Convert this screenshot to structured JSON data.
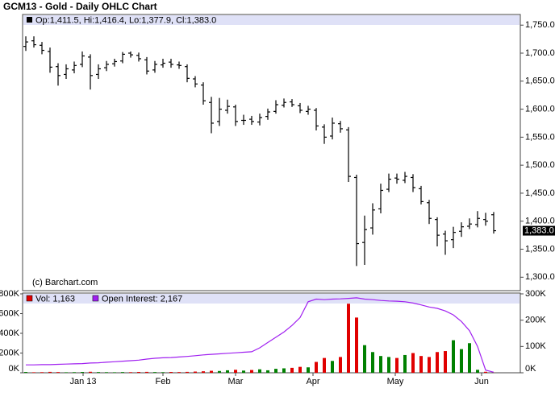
{
  "chart_data": [
    {
      "type": "ohlc",
      "title": "GCM13 - Gold - Daily OHLC Chart",
      "legend_text": "Op:1,411.5, Hi:1,416.4, Lo:1,377.9, Cl:1,383.0",
      "annotation": "(c) Barchart.com",
      "last_price_label": "1,383.0",
      "color": "#000000",
      "xlim": [
        -0.4,
        61.3
      ],
      "open": [
        1712,
        1722,
        1714,
        1703,
        1676,
        1662,
        1670,
        1680,
        1693,
        1662,
        1674,
        1681,
        1686,
        1700,
        1696,
        1688,
        1670,
        1679,
        1684,
        1679,
        1676,
        1654,
        1643,
        1612,
        1578,
        1598,
        1604,
        1580,
        1582,
        1577,
        1587,
        1596,
        1607,
        1613,
        1606,
        1596,
        1598,
        1568,
        1552,
        1574,
        1563,
        1478,
        1362,
        1388,
        1422,
        1457,
        1477,
        1473,
        1478,
        1458,
        1433,
        1403,
        1377,
        1367,
        1382,
        1391,
        1394,
        1403,
        1411.5
      ],
      "high": [
        1730,
        1730,
        1720,
        1710,
        1682,
        1680,
        1685,
        1703,
        1698,
        1680,
        1686,
        1690,
        1702,
        1703,
        1701,
        1693,
        1686,
        1690,
        1690,
        1685,
        1680,
        1659,
        1648,
        1622,
        1620,
        1617,
        1608,
        1590,
        1588,
        1592,
        1601,
        1616,
        1619,
        1618,
        1611,
        1606,
        1602,
        1573,
        1585,
        1579,
        1568,
        1483,
        1410,
        1432,
        1467,
        1485,
        1485,
        1488,
        1484,
        1463,
        1438,
        1407,
        1383,
        1390,
        1398,
        1405,
        1418,
        1415,
        1416.4
      ],
      "low": [
        1704,
        1710,
        1698,
        1665,
        1642,
        1654,
        1664,
        1675,
        1635,
        1654,
        1668,
        1676,
        1682,
        1692,
        1685,
        1662,
        1665,
        1674,
        1674,
        1672,
        1648,
        1639,
        1608,
        1557,
        1570,
        1592,
        1570,
        1572,
        1572,
        1571,
        1581,
        1592,
        1603,
        1604,
        1593,
        1590,
        1562,
        1538,
        1546,
        1558,
        1470,
        1320,
        1322,
        1376,
        1414,
        1452,
        1467,
        1468,
        1452,
        1430,
        1395,
        1355,
        1340,
        1352,
        1372,
        1386,
        1389,
        1392,
        1377.9
      ],
      "close": [
        1720,
        1715,
        1705,
        1675,
        1660,
        1672,
        1678,
        1695,
        1660,
        1672,
        1680,
        1685,
        1698,
        1697,
        1690,
        1668,
        1680,
        1682,
        1680,
        1678,
        1655,
        1645,
        1615,
        1575,
        1600,
        1605,
        1578,
        1580,
        1578,
        1585,
        1595,
        1608,
        1612,
        1608,
        1598,
        1600,
        1570,
        1550,
        1575,
        1565,
        1480,
        1360,
        1385,
        1420,
        1455,
        1475,
        1475,
        1480,
        1460,
        1435,
        1405,
        1375,
        1365,
        1380,
        1390,
        1395,
        1405,
        1400,
        1383
      ],
      "ylim": [
        1276,
        1769
      ],
      "yticks": [
        {
          "value": 1300,
          "label": "1,300.0"
        },
        {
          "value": 1350,
          "label": "1,350.0"
        },
        {
          "value": 1400,
          "label": "1,400.0"
        },
        {
          "value": 1450,
          "label": "1,450.0"
        },
        {
          "value": 1500,
          "label": "1,500.0"
        },
        {
          "value": 1550,
          "label": "1,550.0"
        },
        {
          "value": 1600,
          "label": "1,600.0"
        },
        {
          "value": 1650,
          "label": "1,650.0"
        },
        {
          "value": 1700,
          "label": "1,700.0"
        },
        {
          "value": 1750,
          "label": "1,750.0"
        }
      ],
      "grid": false
    },
    {
      "type": "bar",
      "xlim": [
        -0.4,
        61.3
      ],
      "xticks": [
        {
          "value": 7.1,
          "label": "Jan 13"
        },
        {
          "value": 17,
          "label": "Feb"
        },
        {
          "value": 26,
          "label": "Mar"
        },
        {
          "value": 35.6,
          "label": "Apr"
        },
        {
          "value": 45.8,
          "label": "May"
        },
        {
          "value": 56.5,
          "label": "Jun"
        }
      ],
      "ylim": [
        0,
        800000
      ],
      "yticks": [
        {
          "value": 0,
          "label": "0K"
        },
        {
          "value": 200000,
          "label": "200K"
        },
        {
          "value": 400000,
          "label": "400K"
        },
        {
          "value": 600000,
          "label": "600K"
        },
        {
          "value": 800000,
          "label": "800K"
        }
      ],
      "y2lim": [
        0,
        300000
      ],
      "y2ticks": [
        {
          "value": 0,
          "label": "0K"
        },
        {
          "value": 100000,
          "label": "100K"
        },
        {
          "value": 200000,
          "label": "200K"
        },
        {
          "value": 300000,
          "label": "300K"
        }
      ],
      "series": [
        {
          "name": "Vol: 1,163",
          "color": "#e00000",
          "up_color": "#008000",
          "values": [
            8000,
            5000,
            6000,
            9000,
            7000,
            5000,
            6000,
            8000,
            10000,
            7000,
            6000,
            5000,
            7000,
            6000,
            8000,
            9000,
            7000,
            6000,
            8000,
            7000,
            9000,
            12000,
            15000,
            20000,
            18000,
            25000,
            30000,
            22000,
            28000,
            35000,
            25000,
            40000,
            45000,
            50000,
            60000,
            55000,
            110000,
            150000,
            120000,
            160000,
            700000,
            560000,
            280000,
            210000,
            170000,
            160000,
            150000,
            180000,
            200000,
            170000,
            160000,
            210000,
            220000,
            330000,
            240000,
            300000,
            30000,
            10000,
            1163
          ]
        },
        {
          "name": "Open Interest: 2,167",
          "color": "#a020f0",
          "axis": "y2",
          "type": "line",
          "values": [
            30000,
            30000,
            31000,
            31000,
            32000,
            33000,
            34000,
            35000,
            37000,
            38000,
            40000,
            42000,
            44000,
            46000,
            48000,
            52000,
            55000,
            57000,
            58000,
            60000,
            62000,
            65000,
            68000,
            70000,
            72000,
            74000,
            76000,
            78000,
            80000,
            95000,
            115000,
            135000,
            155000,
            180000,
            210000,
            270000,
            280000,
            278000,
            280000,
            281000,
            283000,
            285000,
            280000,
            278000,
            275000,
            273000,
            272000,
            270000,
            265000,
            258000,
            250000,
            245000,
            235000,
            220000,
            195000,
            160000,
            100000,
            10000,
            2167
          ]
        }
      ]
    }
  ]
}
